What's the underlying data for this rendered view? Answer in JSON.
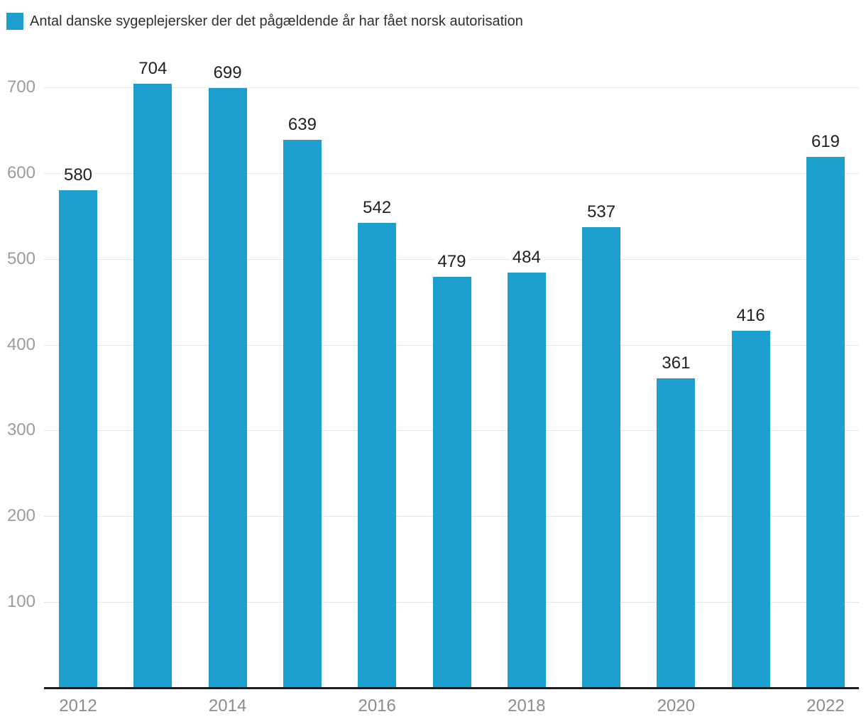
{
  "legend": {
    "label": "Antal danske sygeplejersker der det pågældende år har fået norsk autorisation"
  },
  "chart_data": {
    "type": "bar",
    "title": "",
    "series_name": "Antal danske sygeplejersker der det pågældende år har fået norsk autorisation",
    "categories": [
      "2012",
      "2013",
      "2014",
      "2015",
      "2016",
      "2017",
      "2018",
      "2019",
      "2020",
      "2021",
      "2022"
    ],
    "values": [
      580,
      704,
      699,
      639,
      542,
      479,
      484,
      537,
      361,
      416,
      619
    ],
    "ylim": [
      0,
      700
    ],
    "y_ticks": [
      100,
      200,
      300,
      400,
      500,
      600,
      700
    ],
    "x_tick_labels": [
      "2012",
      "2014",
      "2016",
      "2018",
      "2020",
      "2022"
    ],
    "grid": "horizontal",
    "bar_value_labels": true,
    "legend_position": "top-left"
  },
  "colors": {
    "bar": "#1a9fce",
    "value_label": "#212121",
    "axis_line": "#1a1d21",
    "gridline": "#e7e7e7",
    "x_tick": "#8c8c8c",
    "y_tick": "#9c9c9c",
    "legend_text": "#2f2f2f",
    "background": "#ffffff"
  }
}
